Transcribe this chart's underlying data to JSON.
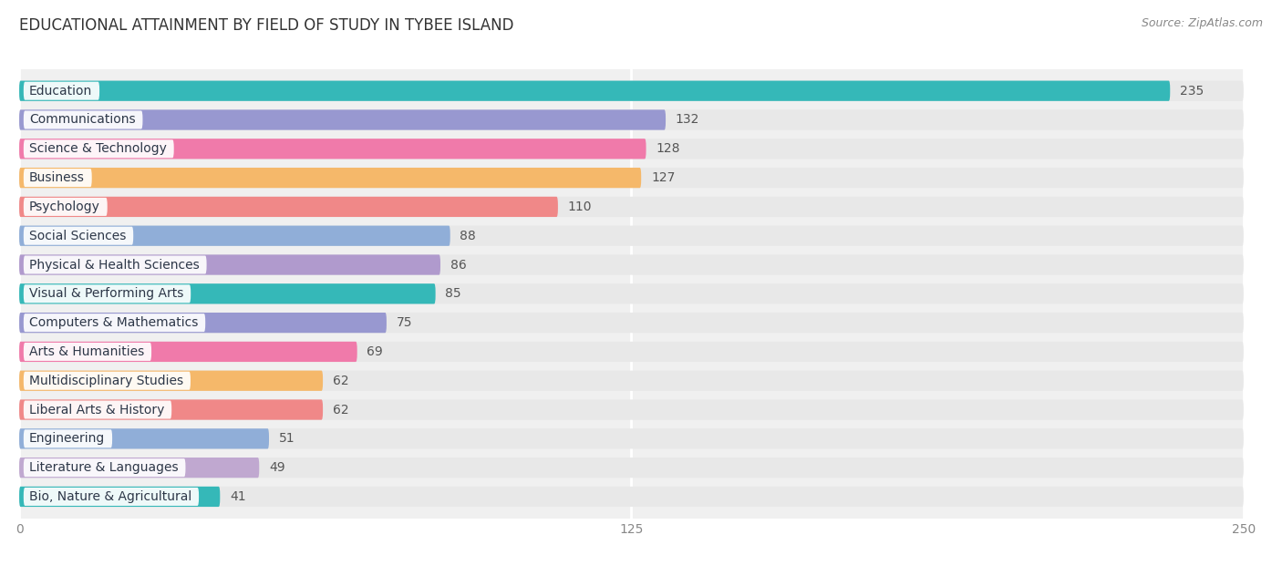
{
  "title": "EDUCATIONAL ATTAINMENT BY FIELD OF STUDY IN TYBEE ISLAND",
  "source": "Source: ZipAtlas.com",
  "categories": [
    "Education",
    "Communications",
    "Science & Technology",
    "Business",
    "Psychology",
    "Social Sciences",
    "Physical & Health Sciences",
    "Visual & Performing Arts",
    "Computers & Mathematics",
    "Arts & Humanities",
    "Multidisciplinary Studies",
    "Liberal Arts & History",
    "Engineering",
    "Literature & Languages",
    "Bio, Nature & Agricultural"
  ],
  "values": [
    235,
    132,
    128,
    127,
    110,
    88,
    86,
    85,
    75,
    69,
    62,
    62,
    51,
    49,
    41
  ],
  "bar_colors": [
    "#35b8b8",
    "#9898d0",
    "#f07aaa",
    "#f5b86a",
    "#f08888",
    "#90aed8",
    "#b09acd",
    "#35b8b8",
    "#9898d0",
    "#f07aaa",
    "#f5b86a",
    "#f08888",
    "#90aed8",
    "#c0a8d0",
    "#35b8b8"
  ],
  "xlim_max": 250,
  "xticks": [
    0,
    125,
    250
  ],
  "title_fontsize": 12,
  "label_fontsize": 10,
  "value_fontsize": 10
}
